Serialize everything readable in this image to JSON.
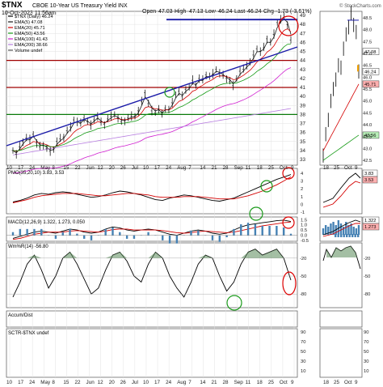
{
  "header": {
    "symbol": "$TNX",
    "description": "CBOE 10-Year US Treasury Yield INX",
    "date": "10-Oct-2023 11:56am",
    "open_label": "Open",
    "open": "47.03",
    "high_label": "High",
    "high": "47.13",
    "low_label": "Low",
    "low": "46.24",
    "last_label": "Last",
    "last": "46.24",
    "chg_label": "Chg",
    "chg": "-1.73 (-3.61%)",
    "watermark": "© StockCharts.com"
  },
  "legend": [
    {
      "text": "$TNX (Daily) 46.24",
      "color": "#000000"
    },
    {
      "text": "EMA(5) 47.08",
      "color": "#1a1a1a"
    },
    {
      "text": "EMA(20) 45.71",
      "color": "#d40000"
    },
    {
      "text": "EMA(50) 43.56",
      "color": "#159a15"
    },
    {
      "text": "EMA(100) 41.43",
      "color": "#d01fd0"
    },
    {
      "text": "EMA(200) 38.66",
      "color": "#b87fe0"
    },
    {
      "text": "Volume undef",
      "color": "#555555"
    }
  ],
  "panels": {
    "pmo": "PMO(35,20,10) 3.83, 3.53",
    "macd": "MACD(12,26,9) 1.322, 1.273, 0.050",
    "willr": "Wm%R(14) -56.80",
    "accum": "Accum/Dist",
    "sctr": "SCTR-$TNX undef"
  },
  "x_axis_main": [
    "10",
    "17",
    "24",
    "May",
    "8",
    "15",
    "22",
    "Jun",
    "12",
    "20",
    "26",
    "Jul",
    "10",
    "17",
    "24",
    "Aug",
    "7",
    "14",
    "21",
    "28",
    "Sep",
    "11",
    "18",
    "25",
    "Oct",
    "9"
  ],
  "x_axis_side": [
    "18",
    "25",
    "Oct",
    "9"
  ],
  "y_axis_main": [
    "49",
    "48",
    "47",
    "46",
    "45",
    "44",
    "43",
    "42",
    "41",
    "40",
    "39",
    "38",
    "37",
    "36",
    "35",
    "34",
    "33"
  ],
  "y_axis_side": [
    "48.5",
    "48.0",
    "47.5",
    "47.0",
    "46.5",
    "46.0",
    "45.5",
    "45.0",
    "44.5",
    "44.0",
    "43.5",
    "43.0",
    "42.5"
  ],
  "side_badges": [
    {
      "text": "47.08",
      "color": "#ffffff"
    },
    {
      "text": "46.24",
      "color": "#ffffff"
    },
    {
      "text": "45.71",
      "color": "#ffb0b0"
    },
    {
      "text": "43.56",
      "color": "#b8f0b8"
    }
  ],
  "pmo_axis": [
    "4",
    "3",
    "2",
    "1",
    "0",
    "-1"
  ],
  "pmo_badges": [
    "3.83",
    "3.53"
  ],
  "macd_axis": [
    "1.5",
    "1.0",
    "0.5",
    "0.0",
    "-0.5"
  ],
  "macd_badges": [
    "1.322",
    "1.273"
  ],
  "willr_axis": [
    "-20",
    "-50",
    "-80"
  ],
  "accum_axis": [],
  "sctr_axis": [
    "90",
    "70",
    "50",
    "30",
    "10"
  ],
  "chart_data": {
    "type": "line",
    "title": "$TNX CBOE 10-Year US Treasury Yield INX (Daily)",
    "price": [
      34.0,
      33.6,
      34.4,
      35.0,
      35.4,
      35.2,
      35.8,
      34.8,
      34.4,
      34.6,
      34.2,
      33.9,
      34.1,
      35.0,
      35.3,
      35.5,
      36.2,
      36.6,
      37.4,
      37.2,
      37.0,
      37.6,
      37.2,
      36.8,
      37.4,
      37.8,
      37.1,
      36.9,
      37.5,
      37.8,
      38.0,
      37.6,
      37.2,
      37.3,
      37.6,
      37.8,
      37.8,
      38.4,
      39.4,
      40.4,
      39.2,
      38.4,
      38.2,
      38.6,
      38.0,
      38.7,
      38.5,
      39.3,
      40.2,
      40.6,
      40.0,
      40.8,
      41.0,
      41.8,
      41.2,
      42.0,
      41.8,
      42.4,
      42.2,
      42.5,
      43.0,
      42.6,
      42.3,
      42.0,
      41.7,
      41.2,
      42.0,
      42.8,
      43.0,
      43.5,
      43.8,
      44.6,
      45.3,
      45.0,
      45.4,
      46.4,
      46.0,
      46.9,
      48.2,
      48.6,
      48.8,
      48.0,
      46.24
    ],
    "side_price": [
      42.7,
      43.6,
      44.2,
      45.0,
      45.5,
      45.9,
      46.5,
      46.4,
      47.2,
      47.8,
      48.1,
      48.7,
      48.2,
      47.9,
      46.24
    ],
    "ema20_main_end": 45.71,
    "ema50_main_end": 43.56,
    "ema100_end": 41.43,
    "ema200_end": 38.66,
    "horizontal_levels": [
      48.5,
      44.0,
      41.0,
      38.0
    ],
    "pmo": [
      0.3,
      0.5,
      0.8,
      1.2,
      1.4,
      1.3,
      1.5,
      1.6,
      1.5,
      1.3,
      1.1,
      0.9,
      1.0,
      1.2,
      1.5,
      1.7,
      1.6,
      1.4,
      1.2,
      0.9,
      0.6,
      0.5,
      0.8,
      1.0,
      1.2,
      1.1,
      0.9,
      0.7,
      0.5,
      0.4,
      0.6,
      0.8,
      1.2,
      1.6,
      2.0,
      2.4,
      2.8,
      3.2,
      3.5,
      3.83
    ],
    "pmo_signal": [
      0.2,
      0.4,
      0.6,
      0.9,
      1.1,
      1.2,
      1.3,
      1.4,
      1.4,
      1.4,
      1.3,
      1.2,
      1.1,
      1.1,
      1.2,
      1.3,
      1.4,
      1.4,
      1.3,
      1.2,
      1.0,
      0.9,
      0.9,
      0.9,
      1.0,
      1.0,
      1.0,
      0.9,
      0.8,
      0.7,
      0.7,
      0.7,
      0.9,
      1.1,
      1.4,
      1.7,
      2.1,
      2.5,
      3.0,
      3.53
    ],
    "macd": [
      -0.3,
      -0.1,
      0.1,
      0.3,
      0.4,
      0.3,
      0.2,
      0.4,
      0.6,
      0.5,
      0.3,
      0.2,
      0.3,
      0.6,
      0.8,
      0.7,
      0.5,
      0.4,
      0.5,
      0.6,
      0.5,
      0.3,
      0.1,
      0.0,
      0.2,
      0.4,
      0.5,
      0.4,
      0.2,
      0.1,
      0.2,
      0.5,
      0.8,
      1.0,
      1.1,
      1.2,
      1.3,
      1.4,
      1.45,
      1.322
    ],
    "macd_signal": [
      -0.4,
      -0.3,
      -0.1,
      0.1,
      0.2,
      0.3,
      0.3,
      0.3,
      0.4,
      0.45,
      0.4,
      0.35,
      0.3,
      0.4,
      0.55,
      0.6,
      0.6,
      0.5,
      0.5,
      0.5,
      0.5,
      0.45,
      0.35,
      0.25,
      0.2,
      0.25,
      0.35,
      0.4,
      0.35,
      0.3,
      0.25,
      0.3,
      0.45,
      0.6,
      0.75,
      0.9,
      1.0,
      1.1,
      1.2,
      1.273
    ],
    "willr": [
      -85,
      -60,
      -30,
      -15,
      -40,
      -70,
      -50,
      -20,
      -10,
      -30,
      -55,
      -80,
      -70,
      -40,
      -15,
      -10,
      -25,
      -50,
      -60,
      -30,
      -10,
      -20,
      -50,
      -70,
      -85,
      -60,
      -30,
      -15,
      -20,
      -50,
      -75,
      -60,
      -30,
      -10,
      -5,
      -15,
      -10,
      -5,
      -20,
      -56.8
    ],
    "volume_side": [
      4,
      6,
      5,
      7,
      8,
      6,
      9,
      7,
      5,
      8,
      6,
      7,
      5,
      4,
      6
    ]
  }
}
